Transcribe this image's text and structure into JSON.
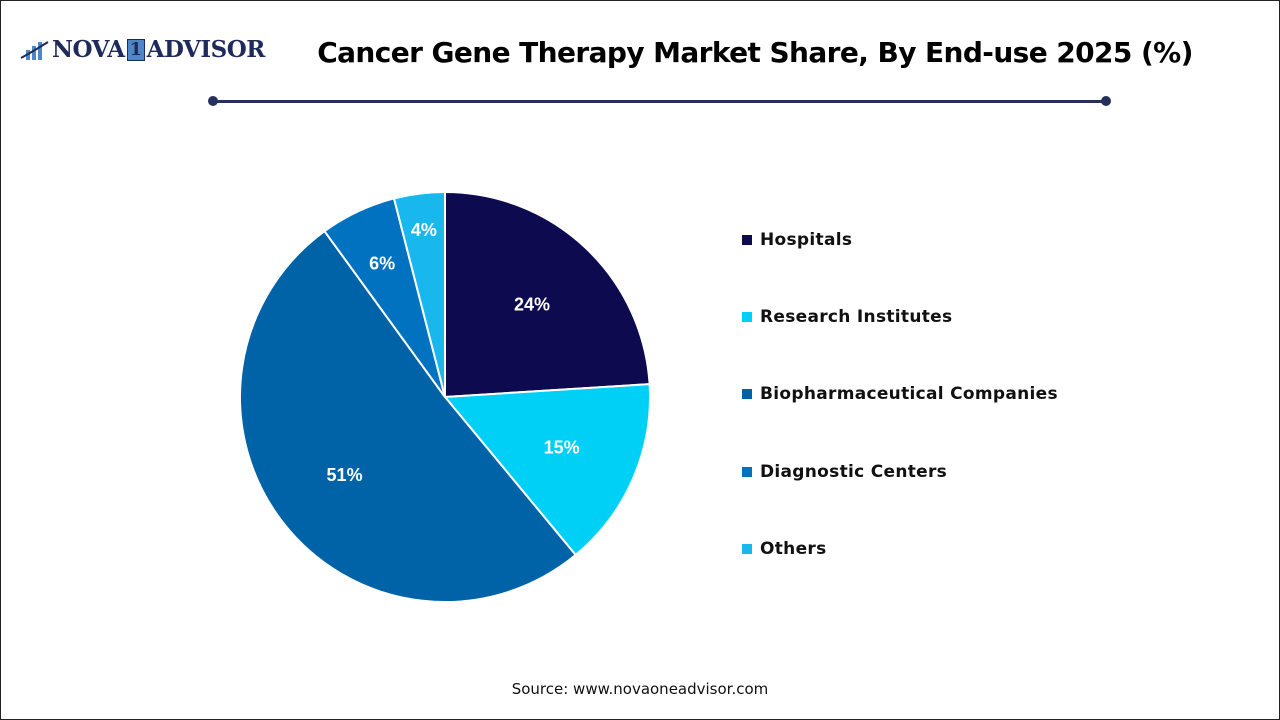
{
  "header": {
    "logo_text": "NOVA 1 ADVISOR",
    "title": "Cancer Gene Therapy Market Share, By End-use 2025 (%)"
  },
  "chart_data": {
    "type": "pie",
    "title": "Cancer Gene Therapy Market Share, By End-use 2025 (%)",
    "start_angle": "12 o'clock, clockwise",
    "legend_position": "right",
    "categories": [
      "Hospitals",
      "Research Institutes",
      "Biopharmaceutical Companies",
      "Diagnostic Centers",
      "Others"
    ],
    "values": [
      24,
      15,
      51,
      6,
      4
    ],
    "labels": [
      "24%",
      "15%",
      "51%",
      "6%",
      "4%"
    ],
    "colors": [
      "#0d0a50",
      "#00d0f5",
      "#0063a8",
      "#0072c0",
      "#18b8ee"
    ]
  },
  "footer": {
    "source": "Source: www.novaoneadvisor.com"
  }
}
